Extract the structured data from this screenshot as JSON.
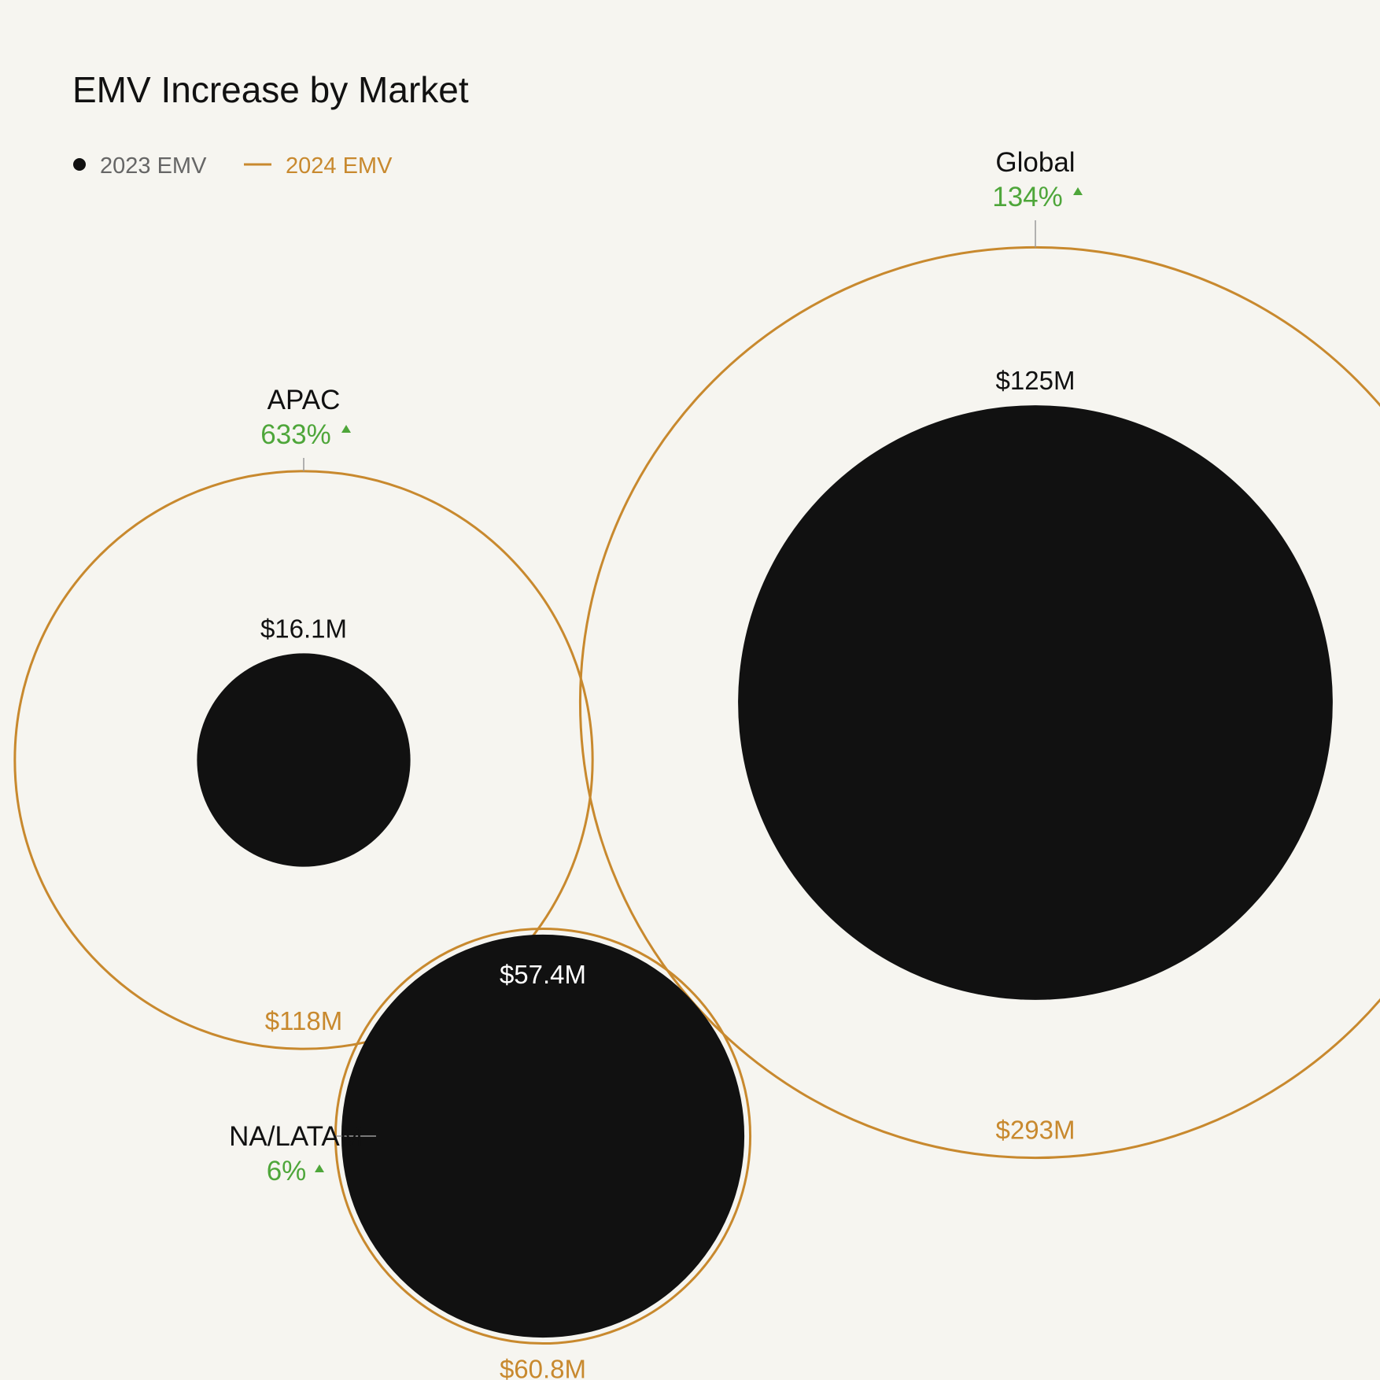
{
  "chart_data": {
    "type": "bubble",
    "title": "EMV Increase by Market",
    "legend": [
      {
        "label": "2023 EMV",
        "marker": "filled-circle",
        "color": "#111111"
      },
      {
        "label": "2024 EMV",
        "marker": "line",
        "color": "#c8892e"
      }
    ],
    "series": [
      {
        "name": "2023 EMV",
        "unit": "$M"
      },
      {
        "name": "2024 EMV",
        "unit": "$M"
      }
    ],
    "markets": [
      {
        "name": "APAC",
        "v2023": 16.1,
        "v2024": 118,
        "v2023_label": "$16.1M",
        "v2024_label": "$118M",
        "increase_label": "633%"
      },
      {
        "name": "Global",
        "v2023": 125,
        "v2024": 293,
        "v2023_label": "$125M",
        "v2024_label": "$293M",
        "increase_label": "134%"
      },
      {
        "name": "NA/LATAM",
        "v2023": 57.4,
        "v2024": 60.8,
        "v2023_label": "$57.4M",
        "v2024_label": "$60.8M",
        "increase_label": "6%"
      }
    ],
    "colors": {
      "background": "#f6f5f0",
      "emv_2023": "#111111",
      "emv_2024": "#c8892e",
      "increase": "#4ea63a",
      "leader": "#9a9a9a",
      "legend_2023_text": "#666666"
    }
  }
}
